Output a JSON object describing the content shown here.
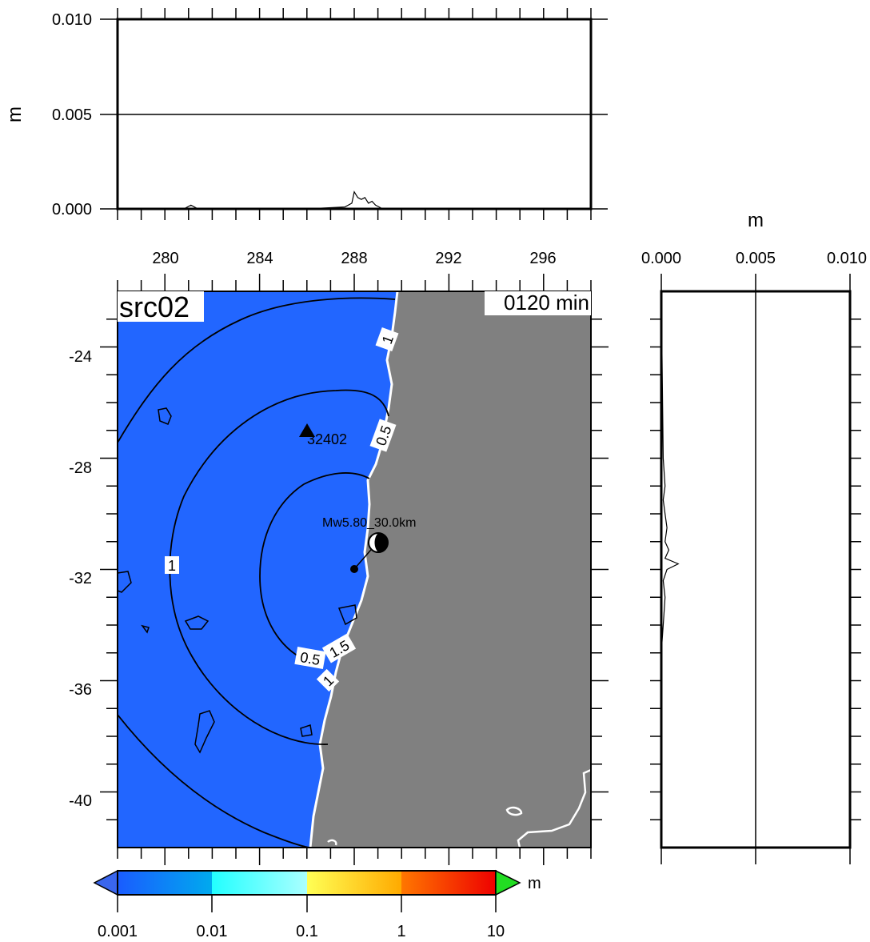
{
  "map": {
    "run_label": "src02",
    "time_label": "0120 min",
    "station_label": "32402",
    "event_label": "Mw5.80_30.0km",
    "x_ticks": [
      "280",
      "284",
      "288",
      "292",
      "296"
    ],
    "y_ticks": [
      "-24",
      "-28",
      "-32",
      "-36",
      "-40"
    ],
    "contour_labels": [
      "1",
      "0.5",
      "1",
      "0.5",
      "1.5",
      "1"
    ],
    "ocean_color": "#2266ff",
    "land_color": "#808080"
  },
  "top_profile": {
    "ylabel": "m",
    "y_ticks": [
      "0.010",
      "0.005",
      "0.000"
    ],
    "ylim": [
      0,
      0.01
    ],
    "chart_data": {
      "type": "line",
      "x": [
        278,
        280.8,
        281.1,
        281.4,
        286,
        287.6,
        287.9,
        288.0,
        288.15,
        288.3,
        288.45,
        288.6,
        288.75,
        288.9,
        289.05,
        289.2,
        298
      ],
      "y": [
        0,
        0,
        0.0002,
        0,
        0,
        0.0001,
        0.0003,
        0.0009,
        0.0006,
        0.0005,
        0.0006,
        0.0003,
        0.0004,
        0.0002,
        0.0001,
        0,
        0
      ]
    }
  },
  "side_profile": {
    "xlabel": "m",
    "x_ticks": [
      "0.000",
      "0.005",
      "0.010"
    ],
    "xlim": [
      0,
      0.01
    ],
    "chart_data": {
      "type": "line",
      "lat": [
        -22,
        -28,
        -29,
        -29.5,
        -30,
        -30.5,
        -31,
        -31.3,
        -31.6,
        -31.8,
        -32.0,
        -32.4,
        -33,
        -34,
        -35,
        -42
      ],
      "value": [
        0,
        0.0001,
        0.0002,
        0.0001,
        0.0002,
        0.0003,
        0.0002,
        0.0004,
        0.0002,
        0.0009,
        0.0003,
        0.0001,
        0.0002,
        0.0001,
        0,
        0
      ]
    }
  },
  "colorbar": {
    "unit": "m",
    "labels": [
      "0.001",
      "0.01",
      "0.1",
      "1",
      "10"
    ],
    "colors": [
      "#1a6bff",
      "#0099ee",
      "#33ffff",
      "#ffff44",
      "#ffaa00",
      "#ff5500",
      "#dd0000",
      "#22dd22"
    ]
  }
}
